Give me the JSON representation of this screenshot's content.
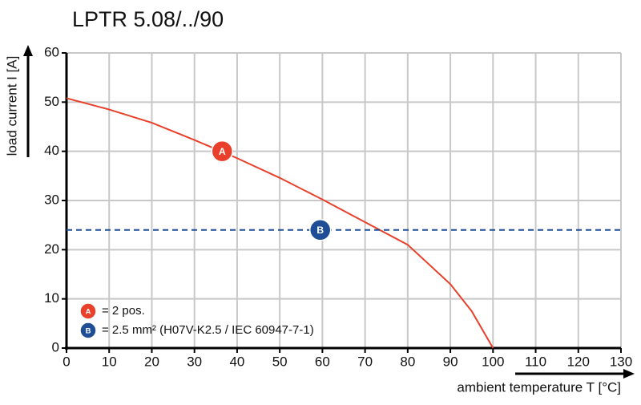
{
  "chart_data": {
    "type": "line",
    "title": "LPTR 5.08/../90",
    "x_label": "ambient temperature T [°C]",
    "y_label": "load current I [A]",
    "xlim": [
      0,
      130
    ],
    "xticks": [
      0,
      10,
      20,
      30,
      40,
      50,
      60,
      70,
      80,
      90,
      100,
      110,
      120,
      130
    ],
    "ylim": [
      0,
      60
    ],
    "yticks": [
      0,
      10,
      20,
      30,
      40,
      50,
      60
    ],
    "grid": true,
    "series": [
      {
        "name": "= 2 pos.",
        "marker": "A",
        "color": "#e8402a",
        "dashed": false,
        "marker_at": [
          36.5,
          40
        ],
        "x": [
          0,
          10,
          20,
          30,
          40,
          50,
          60,
          70,
          80,
          90,
          95,
          100
        ],
        "values": [
          50.8,
          48.5,
          45.8,
          42.3,
          38.6,
          34.6,
          30.2,
          25.6,
          21,
          13,
          7.5,
          0
        ]
      },
      {
        "name": "= 2.5 mm² (H07V-K2.5 / IEC 60947-7-1)",
        "marker": "B",
        "color": "#1f4e96",
        "dashed": true,
        "marker_at": [
          59.5,
          24
        ],
        "x": [
          0,
          130
        ],
        "values": [
          24,
          24
        ]
      }
    ]
  }
}
